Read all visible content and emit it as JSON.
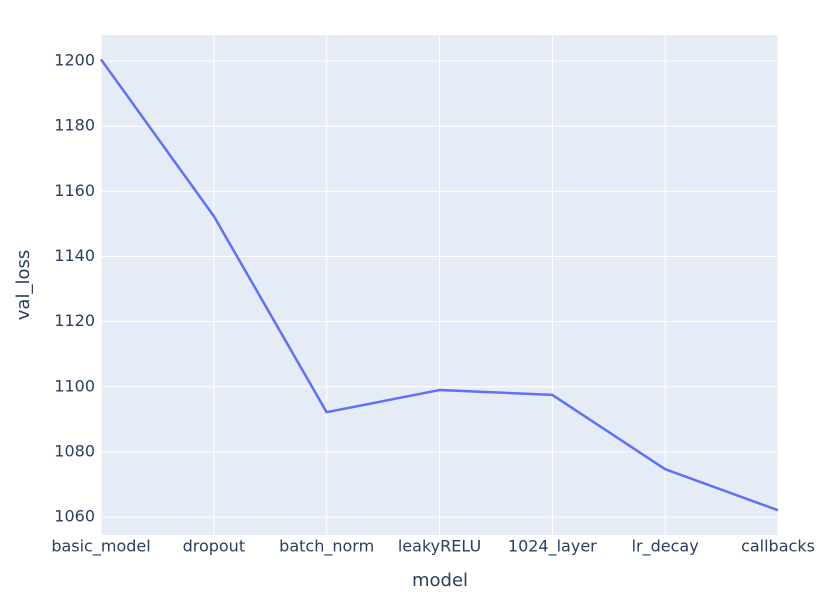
{
  "chart_data": {
    "type": "line",
    "x_label": "model",
    "y_label": "val_loss",
    "categories": [
      "basic_model",
      "dropout",
      "batch_norm",
      "leakyRELU",
      "1024_layer",
      "lr_decay",
      "callbacks"
    ],
    "series": [
      {
        "name": "val_loss",
        "color": "#636efa",
        "values": [
          1200.5,
          1152.4,
          1092.2,
          1099,
          1097.5,
          1074.7,
          1062.1
        ]
      }
    ],
    "ylim": [
      1054.5,
      1208
    ],
    "yticks": [
      1060,
      1080,
      1100,
      1120,
      1140,
      1160,
      1180,
      1200
    ],
    "grid": true
  }
}
